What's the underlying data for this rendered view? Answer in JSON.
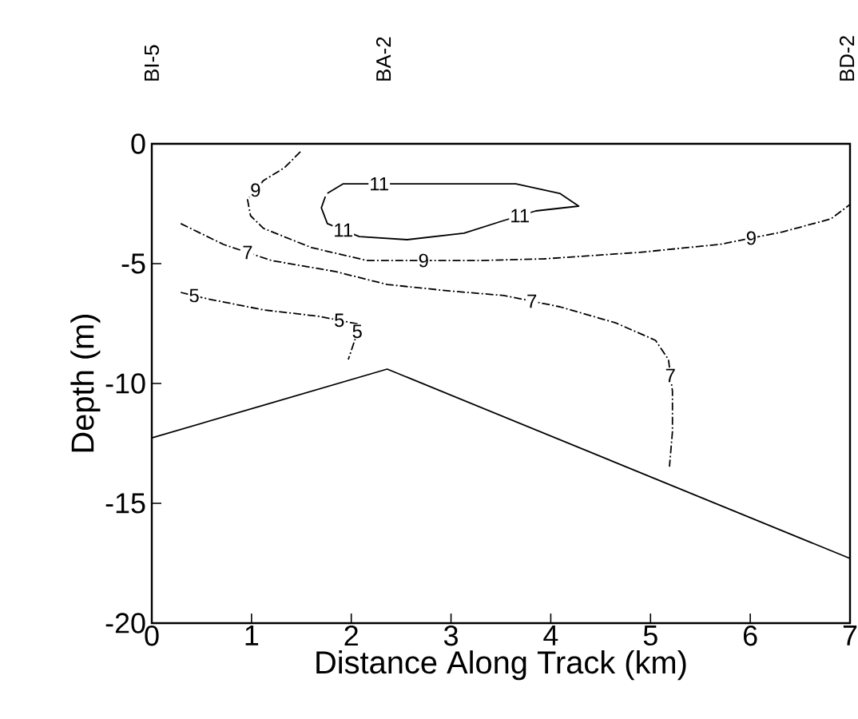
{
  "chart_data": {
    "type": "line",
    "xlabel": "Distance Along Track (km)",
    "ylabel": "Depth (m)",
    "xlim": [
      0,
      7
    ],
    "ylim": [
      -20,
      0
    ],
    "xticks": [
      0,
      1,
      2,
      3,
      4,
      5,
      6,
      7
    ],
    "yticks": [
      0,
      -5,
      -10,
      -15,
      -20
    ],
    "annotations": [
      "BI-5",
      "BA-2",
      "BD-2"
    ],
    "grid": false,
    "legend": false,
    "marker": "none",
    "series": [
      {
        "name": "11",
        "color": "#000000",
        "line_style": "solid",
        "x": [
          1.76,
          1.92,
          2.64,
          3.65,
          4.09,
          4.28,
          3.85,
          3.53,
          3.13,
          2.56,
          2.08,
          1.76,
          1.7,
          1.74
        ],
        "values": [
          -2.07,
          -1.67,
          -1.67,
          -1.67,
          -2.07,
          -2.6,
          -2.8,
          -3.2,
          -3.73,
          -4.0,
          -3.87,
          -3.33,
          -2.67,
          -2.2
        ]
      },
      {
        "name": "9",
        "color": "#000000",
        "line_style": "dashed",
        "x": [
          1.49,
          1.33,
          1.12,
          0.96,
          0.99,
          1.12,
          1.6,
          2.16,
          3.29,
          3.93,
          4.89,
          5.69,
          6.33,
          6.81,
          7.0
        ],
        "values": [
          -0.33,
          -1.0,
          -1.53,
          -2.33,
          -3.0,
          -3.53,
          -4.33,
          -4.87,
          -4.87,
          -4.8,
          -4.53,
          -4.2,
          -3.67,
          -3.13,
          -2.53
        ]
      },
      {
        "name": "7",
        "color": "#000000",
        "line_style": "dashed",
        "x": [
          0.29,
          0.72,
          1.2,
          1.84,
          2.36,
          2.96,
          3.53,
          4.09,
          4.65,
          5.05,
          5.18,
          5.22,
          5.22,
          5.19
        ],
        "values": [
          -3.33,
          -4.2,
          -4.87,
          -5.33,
          -5.87,
          -6.13,
          -6.33,
          -6.8,
          -7.47,
          -8.2,
          -9.0,
          -10.33,
          -12.0,
          -13.47
        ]
      },
      {
        "name": "5",
        "color": "#000000",
        "line_style": "dashed",
        "x": [
          0.29,
          0.56,
          1.12,
          1.68,
          2.08,
          2.04,
          1.97
        ],
        "values": [
          -6.2,
          -6.47,
          -6.93,
          -7.2,
          -7.53,
          -8.13,
          -9.0
        ]
      },
      {
        "color": "#000000",
        "line_style": "solid",
        "x": [
          0,
          2.36,
          7
        ],
        "values": [
          -12.27,
          -9.4,
          -17.3
        ]
      }
    ]
  }
}
